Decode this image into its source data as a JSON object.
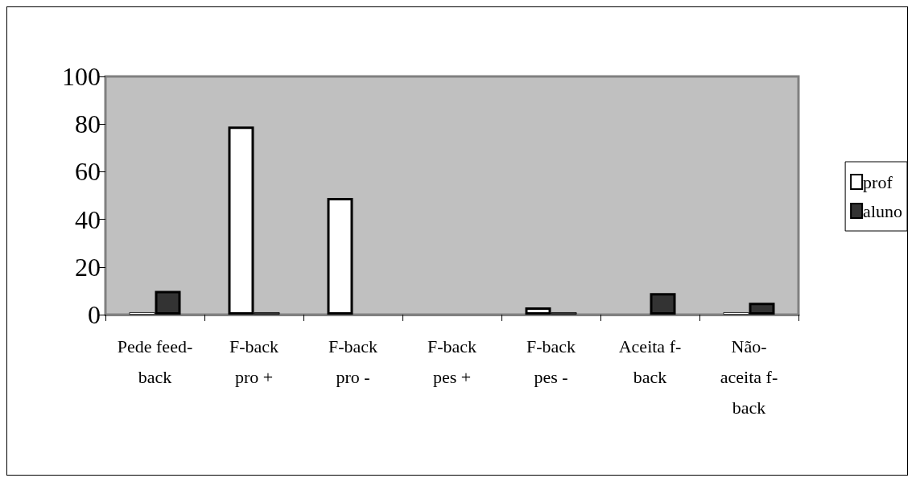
{
  "chart_data": {
    "type": "bar",
    "categories": [
      "Pede feed-back",
      "F-back pro +",
      "F-back pro -",
      "F-back pes +",
      "F-back pes -",
      "Aceita f-back",
      "Não-aceita f-back"
    ],
    "series": [
      {
        "name": "prof",
        "color": "#ffffff",
        "values": [
          1,
          79,
          49,
          0,
          3,
          0,
          1
        ]
      },
      {
        "name": "aluno",
        "color": "#333333",
        "values": [
          10,
          1,
          0,
          0,
          1,
          9,
          5
        ]
      }
    ],
    "ylim": [
      0,
      100
    ],
    "yticks": [
      0,
      20,
      40,
      60,
      80,
      100
    ],
    "grid": false,
    "legend": "right"
  }
}
